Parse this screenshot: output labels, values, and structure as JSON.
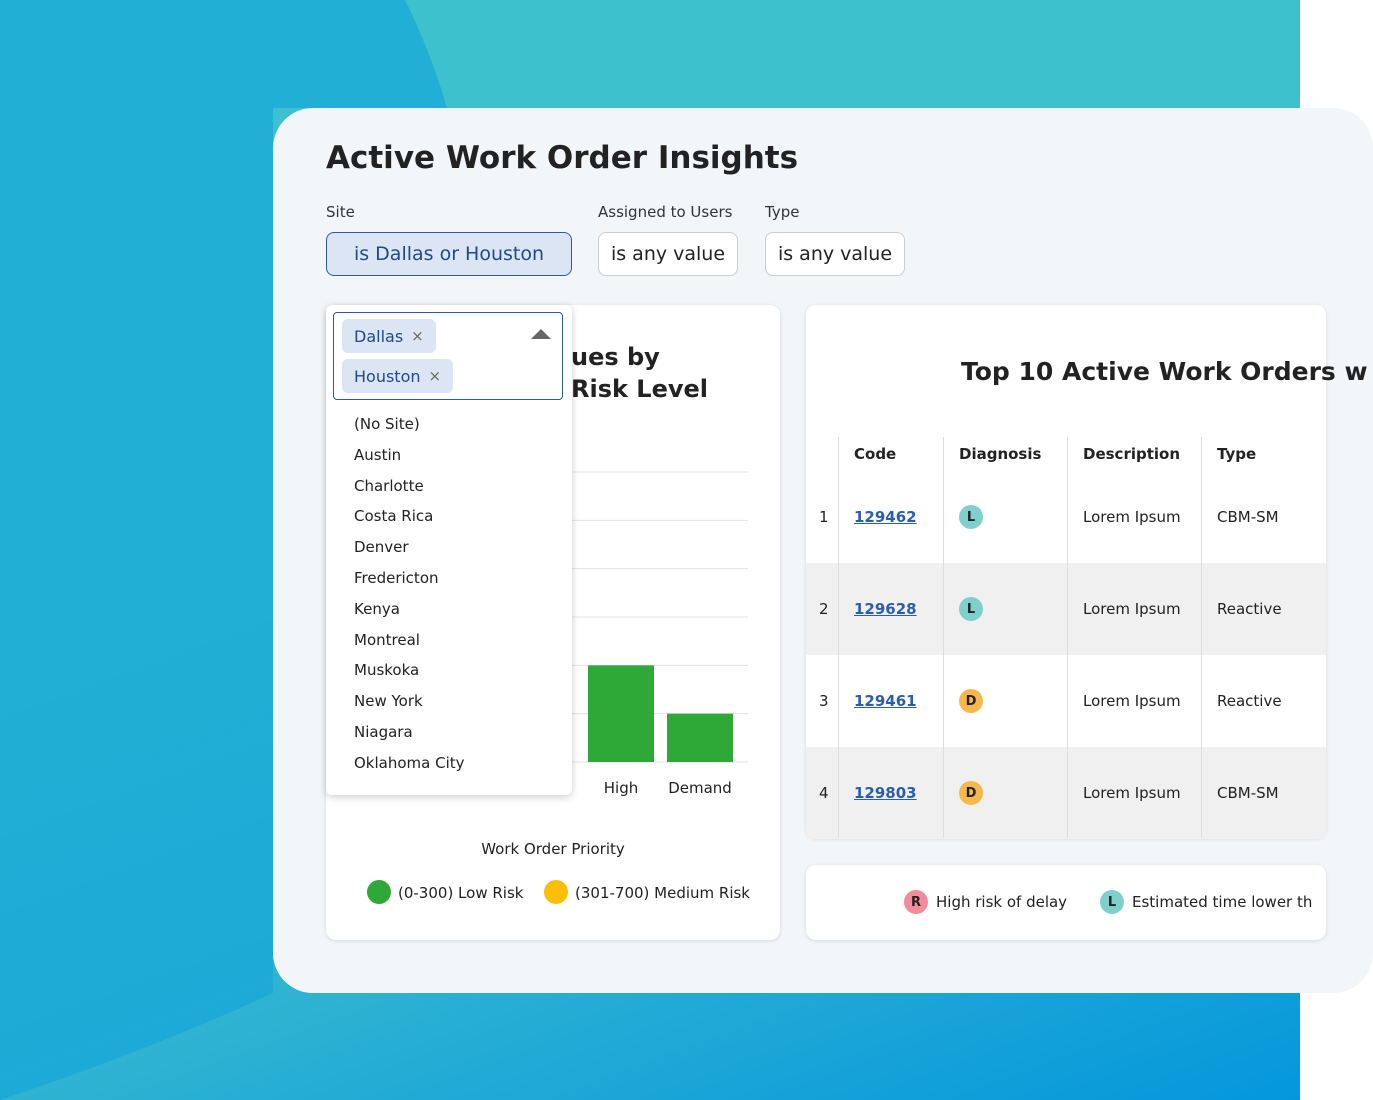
{
  "header": {
    "title": "Active Work Order Insights"
  },
  "filters": [
    {
      "label": "Site",
      "value": "is Dallas or Houston"
    },
    {
      "label": "Assigned to Users",
      "value": "is any value"
    },
    {
      "label": "Type",
      "value": "is any value"
    }
  ],
  "dropdown": {
    "selected": [
      "Dallas",
      "Houston"
    ],
    "options": [
      "(No Site)",
      "Austin",
      "Charlotte",
      "Costa Rica",
      "Denver",
      "Fredericton",
      "Kenya",
      "Montreal",
      "Muskoka",
      "New York",
      "Niagara",
      "Oklahoma City"
    ]
  },
  "chart_data": {
    "type": "bar",
    "title_lines": [
      "ues by",
      "Risk Level"
    ],
    "categories": [
      "High",
      "Demand"
    ],
    "values": [
      2,
      1
    ],
    "color": "#2ea836",
    "ylim": [
      0,
      6
    ],
    "x_label": "Work Order Priority",
    "legend": [
      {
        "name": "(0-300) Low Risk",
        "color": "#2ea836"
      },
      {
        "name": "(301-700) Medium Risk",
        "color": "#fbbf0a"
      }
    ]
  },
  "table": {
    "title": "Top 10 Active Work Orders w",
    "columns": [
      "Code",
      "Diagnosis",
      "Description",
      "Type"
    ],
    "rows": [
      [
        1,
        "129462",
        "L",
        "Lorem Ipsum",
        "CBM-SM"
      ],
      [
        2,
        "129628",
        "L",
        "Lorem Ipsum",
        "Reactive"
      ],
      [
        3,
        "129461",
        "D",
        "Lorem Ipsum",
        "Reactive"
      ],
      [
        4,
        "129803",
        "D",
        "Lorem Ipsum",
        "CBM-SM"
      ]
    ]
  },
  "key": [
    {
      "badge": "R",
      "text": "High risk of delay"
    },
    {
      "badge": "L",
      "text": "Estimated time lower th"
    }
  ]
}
